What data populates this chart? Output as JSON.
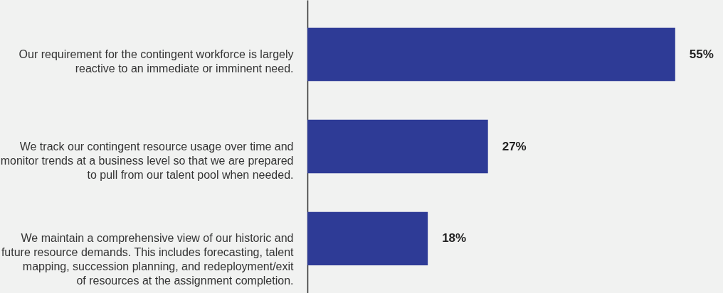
{
  "chart_data": {
    "type": "bar",
    "orientation": "horizontal",
    "categories": [
      "Our requirement for the contingent workforce is largely\nreactive to an immediate or imminent need.",
      "We track our contingent resource usage over time and\nmonitor trends at a business level so that we are prepared\nto pull from our talent pool when needed.",
      "We maintain a comprehensive view of our historic and\nfuture resource demands. This includes forecasting, talent\nmapping, succession planning, and redeployment/exit\nof resources at the assignment completion."
    ],
    "values": [
      55,
      27,
      18
    ],
    "value_labels": [
      "55%",
      "27%",
      "18%"
    ],
    "color": "#2e3b96",
    "grid": false,
    "tick_labels": "y"
  }
}
